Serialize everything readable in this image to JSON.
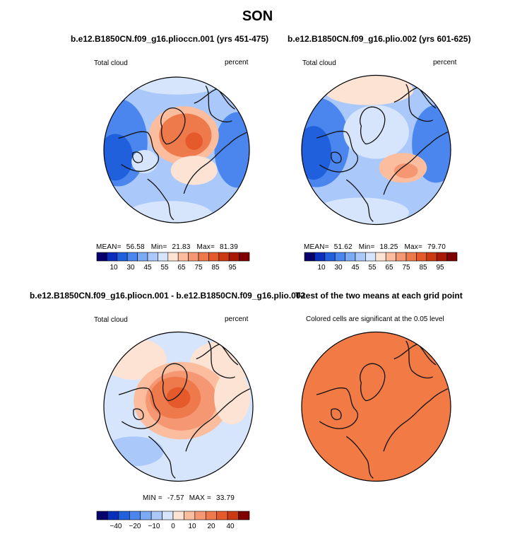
{
  "main_title": "SON",
  "colors": {
    "coast": "#111111",
    "outline": "#000000",
    "ttest_fill": "#f27a45"
  },
  "chart_data": [
    {
      "type": "heatmap",
      "projection": "north-polar-stereographic",
      "title": "b.e12.B1850CN.f09_g16.plioccn.001 (yrs 451-475)",
      "left_label": "Total cloud",
      "right_label": "percent",
      "stats": {
        "mean_label": "MEAN=",
        "mean": "56.58",
        "min_label": "Min=",
        "min": "21.83",
        "max_label": "Max=",
        "max": "81.39"
      },
      "colorbar": {
        "ticks": [
          "10",
          "30",
          "45",
          "55",
          "65",
          "75",
          "85",
          "95"
        ],
        "colors": [
          "#08006b",
          "#0a2fbd",
          "#2060dd",
          "#4a86ee",
          "#7daaf5",
          "#aac9fa",
          "#d7e5fc",
          "#fde3d4",
          "#fbbd9e",
          "#f59773",
          "#ee7a4c",
          "#e45a2a",
          "#cc3a12",
          "#a81a06",
          "#7f0000"
        ]
      },
      "pattern": "a"
    },
    {
      "type": "heatmap",
      "projection": "north-polar-stereographic",
      "title": "b.e12.B1850CN.f09_g16.plio.002 (yrs 601-625)",
      "left_label": "Total cloud",
      "right_label": "percent",
      "stats": {
        "mean_label": "MEAN=",
        "mean": "51.62",
        "min_label": "Min=",
        "min": "18.25",
        "max_label": "Max=",
        "max": "79.70"
      },
      "colorbar": {
        "ticks": [
          "10",
          "30",
          "45",
          "55",
          "65",
          "75",
          "85",
          "95"
        ],
        "colors": [
          "#08006b",
          "#0a2fbd",
          "#2060dd",
          "#4a86ee",
          "#7daaf5",
          "#aac9fa",
          "#d7e5fc",
          "#fde3d4",
          "#fbbd9e",
          "#f59773",
          "#ee7a4c",
          "#e45a2a",
          "#cc3a12",
          "#a81a06",
          "#7f0000"
        ]
      },
      "pattern": "b"
    },
    {
      "type": "heatmap",
      "projection": "north-polar-stereographic",
      "title": "b.e12.B1850CN.f09_g16.pliocn.001 - b.e12.B1850CN.f09_g16.plio.002",
      "left_label": "Total cloud",
      "right_label": "percent",
      "stats": {
        "min_label": "MIN =",
        "min": "-7.57",
        "max_label": "MAX =",
        "max": "33.79"
      },
      "colorbar": {
        "ticks": [
          "−40",
          "−20",
          "−10",
          "0",
          "10",
          "20",
          "40"
        ],
        "colors": [
          "#08006b",
          "#0a2fbd",
          "#2060dd",
          "#4a86ee",
          "#7daaf5",
          "#aac9fa",
          "#d7e5fc",
          "#fde3d4",
          "#fbbd9e",
          "#f59773",
          "#ee7a4c",
          "#e45a2a",
          "#cc3a12",
          "#7f0000"
        ]
      },
      "pattern": "diff"
    },
    {
      "type": "heatmap",
      "projection": "north-polar-stereographic",
      "title": "T-test of the two means at each grid point",
      "subtitle": "Colored cells are significant at the 0.05 level",
      "pattern": "ttest"
    }
  ]
}
